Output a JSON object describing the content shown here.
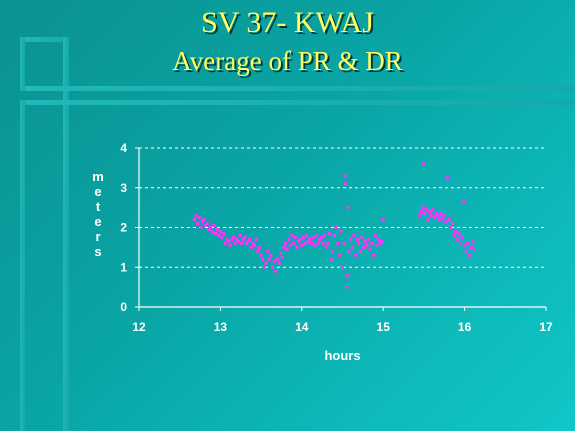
{
  "slide": {
    "title": "SV 37- KWAJ",
    "subtitle": "Average of PR & DR"
  },
  "colors": {
    "background": "#0aa5a5",
    "title": "#ffff66",
    "points": "#ff33ff",
    "axis": "#ffffff",
    "text": "#ffffff"
  },
  "chart_data": {
    "type": "scatter",
    "title": "",
    "xlabel": "hours",
    "ylabel": "meters",
    "xlim": [
      12,
      17
    ],
    "ylim": [
      0,
      4
    ],
    "xticks": [
      "12",
      "13",
      "14",
      "15",
      "16",
      "17"
    ],
    "yticks": [
      "0",
      "1",
      "2",
      "3",
      "4"
    ],
    "grid": "horizontal dashed",
    "series": [
      {
        "color": "#ff33ff",
        "points": [
          [
            12.68,
            2.2
          ],
          [
            12.7,
            2.3
          ],
          [
            12.72,
            2.1
          ],
          [
            12.74,
            2.25
          ],
          [
            12.76,
            2.0
          ],
          [
            12.78,
            2.15
          ],
          [
            12.8,
            2.2
          ],
          [
            12.82,
            2.05
          ],
          [
            12.84,
            2.1
          ],
          [
            12.86,
            1.95
          ],
          [
            12.88,
            2.0
          ],
          [
            12.9,
            1.9
          ],
          [
            12.92,
            2.05
          ],
          [
            12.94,
            1.85
          ],
          [
            12.96,
            1.95
          ],
          [
            12.98,
            1.8
          ],
          [
            13.0,
            1.9
          ],
          [
            13.02,
            1.75
          ],
          [
            13.04,
            1.85
          ],
          [
            13.06,
            1.6
          ],
          [
            13.08,
            1.7
          ],
          [
            13.1,
            1.65
          ],
          [
            13.12,
            1.55
          ],
          [
            13.14,
            1.7
          ],
          [
            13.16,
            1.75
          ],
          [
            13.18,
            1.6
          ],
          [
            13.2,
            1.7
          ],
          [
            13.22,
            1.65
          ],
          [
            13.24,
            1.8
          ],
          [
            13.26,
            1.6
          ],
          [
            13.28,
            1.7
          ],
          [
            13.3,
            1.75
          ],
          [
            13.32,
            1.6
          ],
          [
            13.34,
            1.65
          ],
          [
            13.36,
            1.7
          ],
          [
            13.38,
            1.5
          ],
          [
            13.4,
            1.6
          ],
          [
            13.42,
            1.55
          ],
          [
            13.44,
            1.7
          ],
          [
            13.46,
            1.4
          ],
          [
            13.48,
            1.5
          ],
          [
            13.5,
            1.3
          ],
          [
            13.52,
            1.2
          ],
          [
            13.54,
            1.0
          ],
          [
            13.56,
            1.1
          ],
          [
            13.58,
            1.4
          ],
          [
            13.6,
            1.2
          ],
          [
            13.62,
            1.3
          ],
          [
            13.64,
            1.0
          ],
          [
            13.66,
            1.15
          ],
          [
            13.68,
            0.9
          ],
          [
            13.7,
            1.2
          ],
          [
            13.72,
            1.1
          ],
          [
            13.74,
            1.35
          ],
          [
            13.76,
            1.25
          ],
          [
            13.78,
            1.5
          ],
          [
            13.8,
            1.6
          ],
          [
            13.82,
            1.45
          ],
          [
            13.84,
            1.7
          ],
          [
            13.86,
            1.55
          ],
          [
            13.88,
            1.8
          ],
          [
            13.9,
            1.6
          ],
          [
            13.92,
            1.75
          ],
          [
            13.94,
            1.5
          ],
          [
            13.96,
            1.65
          ],
          [
            13.98,
            1.7
          ],
          [
            14.0,
            1.55
          ],
          [
            14.02,
            1.75
          ],
          [
            14.04,
            1.6
          ],
          [
            14.06,
            1.8
          ],
          [
            14.08,
            1.65
          ],
          [
            14.1,
            1.7
          ],
          [
            14.12,
            1.6
          ],
          [
            14.14,
            1.75
          ],
          [
            14.16,
            1.55
          ],
          [
            14.18,
            1.8
          ],
          [
            14.2,
            1.6
          ],
          [
            14.22,
            1.7
          ],
          [
            14.24,
            1.75
          ],
          [
            14.26,
            1.6
          ],
          [
            14.28,
            1.8
          ],
          [
            14.3,
            1.5
          ],
          [
            14.32,
            1.6
          ],
          [
            14.34,
            1.85
          ],
          [
            14.36,
            1.2
          ],
          [
            14.38,
            1.4
          ],
          [
            14.4,
            1.8
          ],
          [
            14.42,
            2.0
          ],
          [
            14.44,
            1.6
          ],
          [
            14.46,
            1.3
          ],
          [
            14.48,
            1.9
          ],
          [
            14.5,
            1.0
          ],
          [
            14.52,
            1.6
          ],
          [
            14.53,
            3.3
          ],
          [
            14.54,
            3.1
          ],
          [
            14.55,
            0.5
          ],
          [
            14.56,
            0.8
          ],
          [
            14.57,
            2.5
          ],
          [
            14.58,
            1.4
          ],
          [
            14.6,
            1.7
          ],
          [
            14.62,
            1.5
          ],
          [
            14.64,
            1.8
          ],
          [
            14.66,
            1.3
          ],
          [
            14.68,
            1.7
          ],
          [
            14.7,
            1.6
          ],
          [
            14.72,
            1.4
          ],
          [
            14.74,
            1.75
          ],
          [
            14.76,
            1.5
          ],
          [
            14.78,
            1.65
          ],
          [
            14.8,
            1.55
          ],
          [
            14.82,
            1.7
          ],
          [
            14.84,
            1.45
          ],
          [
            14.86,
            1.6
          ],
          [
            14.88,
            1.3
          ],
          [
            14.9,
            1.8
          ],
          [
            14.92,
            1.55
          ],
          [
            14.94,
            1.7
          ],
          [
            14.96,
            1.6
          ],
          [
            14.98,
            1.65
          ],
          [
            15.0,
            2.2
          ],
          [
            15.45,
            2.3
          ],
          [
            15.47,
            2.4
          ],
          [
            15.49,
            2.5
          ],
          [
            15.5,
            3.6
          ],
          [
            15.51,
            2.35
          ],
          [
            15.53,
            2.45
          ],
          [
            15.55,
            2.2
          ],
          [
            15.57,
            2.4
          ],
          [
            15.59,
            2.3
          ],
          [
            15.61,
            2.45
          ],
          [
            15.63,
            2.25
          ],
          [
            15.65,
            2.35
          ],
          [
            15.67,
            2.3
          ],
          [
            15.69,
            2.2
          ],
          [
            15.71,
            2.35
          ],
          [
            15.73,
            2.25
          ],
          [
            15.75,
            2.3
          ],
          [
            15.77,
            2.15
          ],
          [
            15.79,
            3.25
          ],
          [
            15.81,
            2.2
          ],
          [
            15.83,
            2.0
          ],
          [
            15.85,
            2.1
          ],
          [
            15.87,
            1.8
          ],
          [
            15.89,
            1.9
          ],
          [
            15.91,
            1.7
          ],
          [
            15.93,
            1.85
          ],
          [
            15.95,
            1.6
          ],
          [
            15.97,
            1.75
          ],
          [
            15.99,
            2.65
          ],
          [
            16.0,
            1.55
          ],
          [
            16.02,
            1.4
          ],
          [
            16.04,
            1.6
          ],
          [
            16.06,
            1.3
          ],
          [
            16.08,
            1.5
          ],
          [
            16.1,
            1.65
          ],
          [
            16.12,
            1.45
          ]
        ]
      }
    ]
  }
}
